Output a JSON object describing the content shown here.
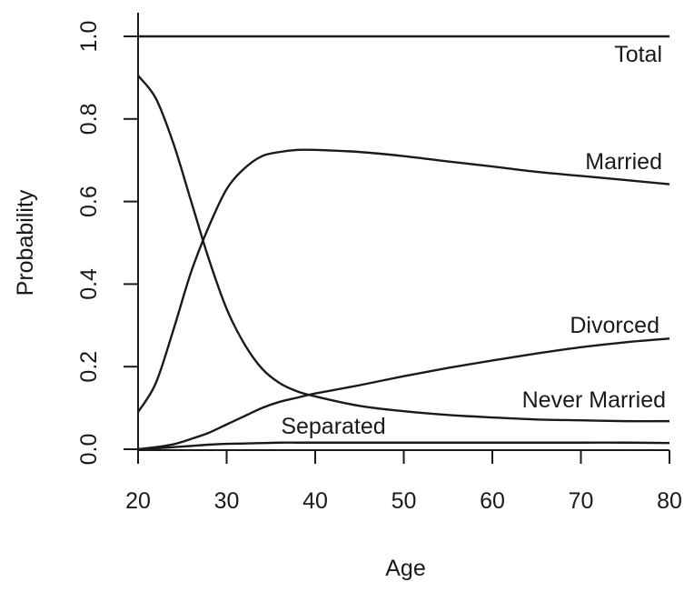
{
  "chart_data": {
    "type": "line",
    "xlabel": "Age",
    "ylabel": "Probability",
    "xlim": [
      20,
      80
    ],
    "ylim": [
      0,
      1
    ],
    "x_ticks": [
      20,
      30,
      40,
      50,
      60,
      70,
      80
    ],
    "y_ticks": [
      "0.0",
      "0.2",
      "0.4",
      "0.6",
      "0.8",
      "1.0"
    ],
    "grid": false,
    "legend": "none",
    "line_color": "#1a1a1a",
    "x": [
      20,
      22,
      24,
      26,
      28,
      30,
      32,
      34,
      36,
      38,
      40,
      45,
      50,
      55,
      60,
      65,
      70,
      75,
      80
    ],
    "series": [
      {
        "name": "Total",
        "values": [
          1.0,
          1.0,
          1.0,
          1.0,
          1.0,
          1.0,
          1.0,
          1.0,
          1.0,
          1.0,
          1.0,
          1.0,
          1.0,
          1.0,
          1.0,
          1.0,
          1.0,
          1.0,
          1.0
        ]
      },
      {
        "name": "Married",
        "values": [
          0.09,
          0.16,
          0.29,
          0.43,
          0.54,
          0.63,
          0.68,
          0.71,
          0.72,
          0.725,
          0.725,
          0.72,
          0.71,
          0.697,
          0.685,
          0.672,
          0.662,
          0.652,
          0.642
        ]
      },
      {
        "name": "Divorced",
        "values": [
          0.0,
          0.005,
          0.012,
          0.025,
          0.04,
          0.06,
          0.08,
          0.1,
          0.115,
          0.125,
          0.135,
          0.155,
          0.177,
          0.197,
          0.215,
          0.232,
          0.247,
          0.259,
          0.268
        ]
      },
      {
        "name": "Never Married",
        "values": [
          0.905,
          0.85,
          0.74,
          0.6,
          0.46,
          0.34,
          0.255,
          0.195,
          0.16,
          0.14,
          0.128,
          0.105,
          0.092,
          0.083,
          0.077,
          0.072,
          0.07,
          0.068,
          0.068
        ]
      },
      {
        "name": "Separated",
        "values": [
          0.0,
          0.002,
          0.005,
          0.008,
          0.011,
          0.013,
          0.014,
          0.015,
          0.016,
          0.016,
          0.016,
          0.016,
          0.016,
          0.016,
          0.016,
          0.016,
          0.016,
          0.016,
          0.015
        ]
      }
    ]
  }
}
